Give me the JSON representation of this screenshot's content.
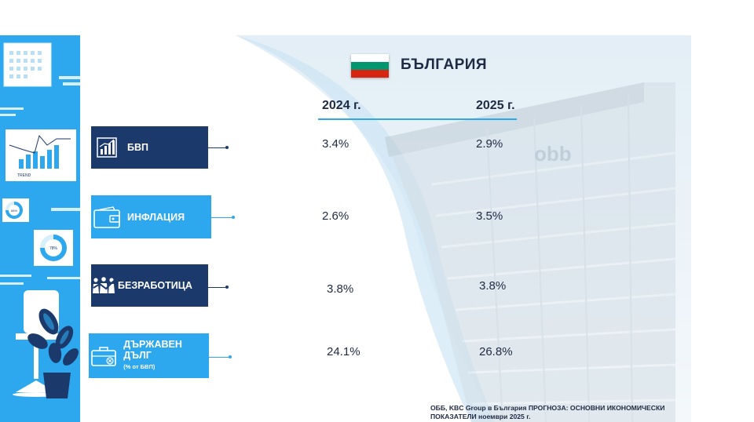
{
  "header": {
    "country": "БЪЛГАРИЯ",
    "flag_colors": [
      "#ffffff",
      "#00966e",
      "#d62612"
    ]
  },
  "years": [
    "2024 г.",
    "2025 г."
  ],
  "indicators": [
    {
      "label": "БВП",
      "sublabel": "",
      "icon": "bar-chart-icon",
      "values": [
        "3.4%",
        "2.9%"
      ],
      "box_color": "#1b3a6b"
    },
    {
      "label": "ИНФЛАЦИЯ",
      "sublabel": "",
      "icon": "wallet-icon",
      "values": [
        "2.6%",
        "3.5%"
      ],
      "box_color": "#2da8ee"
    },
    {
      "label": "БЕЗРАБОТИЦА",
      "sublabel": "",
      "icon": "people-icon",
      "values": [
        "3.8%",
        "3.8%"
      ],
      "box_color": "#1b3a6b"
    },
    {
      "label": "ДЪРЖАВЕН ДЪЛГ",
      "sublabel": "(% от БВП)",
      "icon": "briefcase-icon",
      "values": [
        "24.1%",
        "26.8%"
      ],
      "box_color": "#2da8ee"
    }
  ],
  "illustration": {
    "trend_label": "TREND",
    "donut_small": "68%",
    "donut_large": "78%"
  },
  "footer": {
    "source": "ОББ, KBC Group в България ПРОГНОЗА: ОСНОВНИ ИКОНОМИЧЕСКИ ПОКАЗАТЕЛИ ноември 2025 г."
  }
}
